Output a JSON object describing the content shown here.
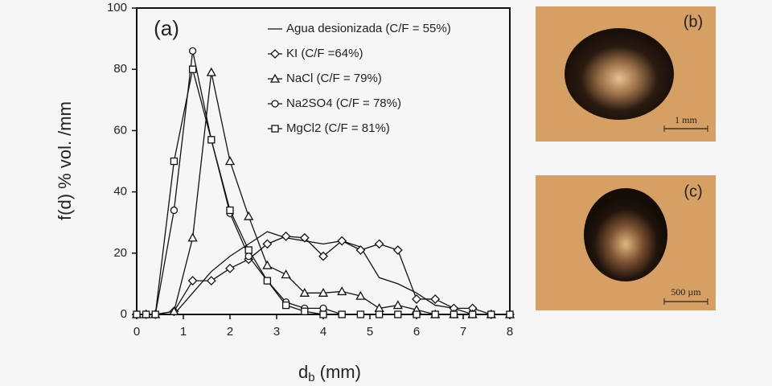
{
  "chart_data": {
    "type": "line",
    "annotation": "(a)",
    "ylabel": "f(d) % vol. /mm",
    "xlabel": {
      "main": "d",
      "sub": "b",
      "unit": "(mm)"
    },
    "x": [
      0,
      0.2,
      0.4,
      0.8,
      1.2,
      1.6,
      2.0,
      2.4,
      2.8,
      3.2,
      3.6,
      4.0,
      4.4,
      4.8,
      5.2,
      5.6,
      6.0,
      6.4,
      6.8,
      7.2,
      7.6,
      8.0
    ],
    "series": [
      {
        "name": "Agua desionizada (C/F = 55%)",
        "color": "#111111",
        "marker": "none",
        "values": [
          0,
          0,
          0,
          0,
          7,
          14,
          19,
          23,
          27,
          25,
          24,
          23,
          24,
          22,
          12,
          10,
          7,
          3,
          2,
          0,
          0,
          0
        ]
      },
      {
        "name": "KI (C/F =64%)",
        "color": "#111111",
        "marker": "diamond",
        "values": [
          0,
          0,
          0,
          1,
          11,
          11,
          15,
          18,
          23,
          25.5,
          25,
          19,
          24,
          21,
          23,
          21,
          5,
          5,
          2,
          2,
          0,
          0
        ]
      },
      {
        "name": "NaCl (C/F = 79%)",
        "color": "#111111",
        "marker": "triangle",
        "values": [
          0,
          0,
          0,
          1,
          25,
          79,
          50,
          32,
          16,
          13,
          7,
          7,
          7.5,
          6,
          2,
          3,
          1.5,
          0,
          0,
          0,
          0,
          0
        ]
      },
      {
        "name": "Na2SO4 (C/F = 78%)",
        "color": "#111111",
        "marker": "circle",
        "values": [
          0,
          0,
          0,
          34,
          86,
          57,
          33,
          19,
          11,
          4,
          2,
          2,
          0,
          0,
          0,
          0,
          0,
          0,
          0,
          0,
          0,
          0
        ]
      },
      {
        "name": "MgCl2 (C/F = 81%)",
        "color": "#111111",
        "marker": "square",
        "values": [
          0,
          0,
          0,
          50,
          80,
          57,
          34,
          21,
          11,
          3,
          1,
          0,
          0,
          0,
          0,
          0,
          0,
          0,
          0,
          0,
          0,
          0
        ]
      }
    ],
    "xlim": [
      0,
      8
    ],
    "xticks": [
      0,
      1,
      2,
      3,
      4,
      5,
      6,
      7,
      8
    ],
    "ylim": [
      0,
      100
    ],
    "yticks": [
      0,
      20,
      40,
      60,
      80,
      100
    ],
    "grid": false,
    "legend": "top-right"
  },
  "panels": {
    "b": {
      "label": "(b)",
      "scale": "1 mm"
    },
    "c": {
      "label": "(c)",
      "scale": "500 µm"
    }
  }
}
